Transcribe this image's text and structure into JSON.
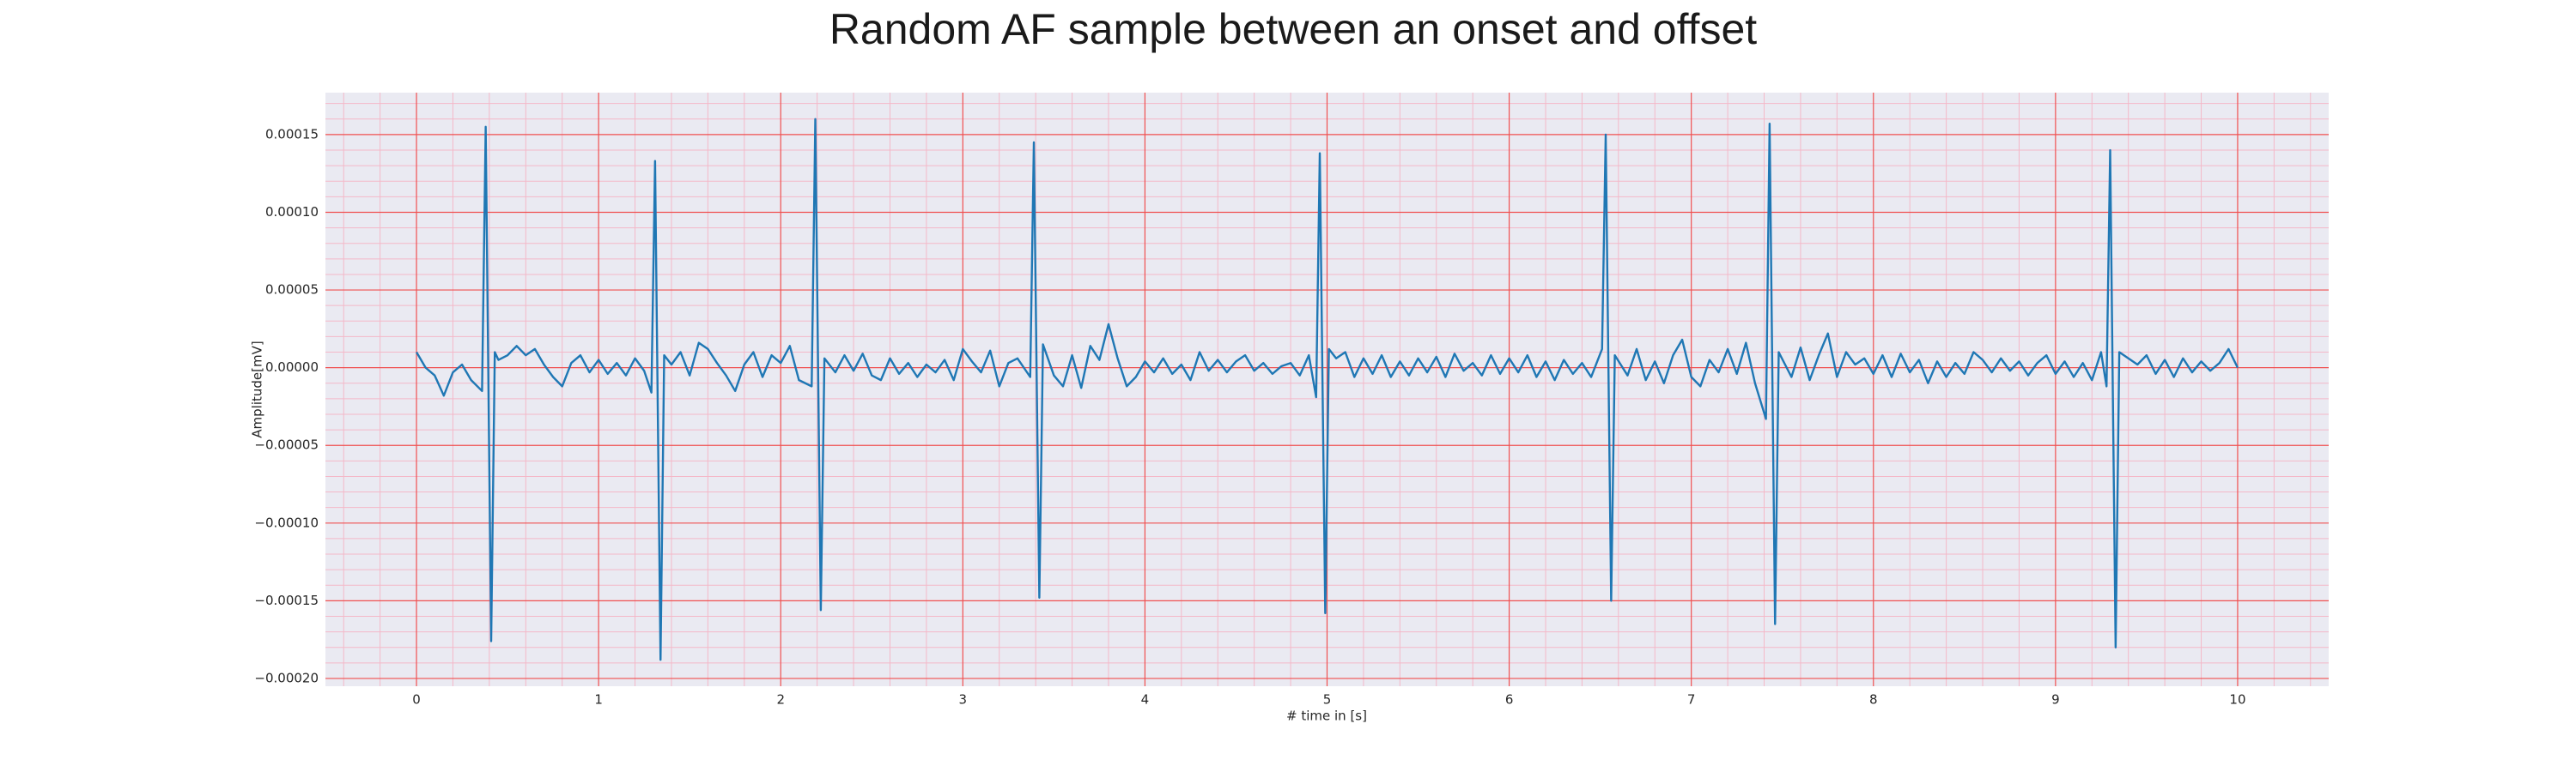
{
  "chart_data": {
    "type": "line",
    "title": "Random AF sample between an onset and offset",
    "xlabel": "# time in [s]",
    "ylabel": "Amplitude[mV]",
    "color": "#1f77b4",
    "grid": true,
    "minor_grid": true,
    "xlim": [
      -0.5,
      10.5
    ],
    "ylim": [
      -0.000205,
      0.000177
    ],
    "xticks": [
      0,
      1,
      2,
      3,
      4,
      5,
      6,
      7,
      8,
      9,
      10
    ],
    "yticks": [
      {
        "value": -0.0002,
        "label": "−0.00020"
      },
      {
        "value": -0.00015,
        "label": "−0.00015"
      },
      {
        "value": -0.0001,
        "label": "−0.00010"
      },
      {
        "value": -5e-05,
        "label": "−0.00005"
      },
      {
        "value": 0,
        "label": "0.00000"
      },
      {
        "value": 5e-05,
        "label": "0.00005"
      },
      {
        "value": 0.0001,
        "label": "0.00010"
      },
      {
        "value": 0.00015,
        "label": "0.00015"
      }
    ],
    "x": [
      0,
      0.05,
      0.1,
      0.15,
      0.2,
      0.25,
      0.3,
      0.36,
      0.38,
      0.41,
      0.43,
      0.45,
      0.5,
      0.55,
      0.6,
      0.65,
      0.7,
      0.75,
      0.8,
      0.85,
      0.9,
      0.95,
      1.0,
      1.05,
      1.1,
      1.15,
      1.2,
      1.25,
      1.29,
      1.31,
      1.34,
      1.36,
      1.4,
      1.45,
      1.5,
      1.55,
      1.6,
      1.65,
      1.7,
      1.75,
      1.8,
      1.85,
      1.9,
      1.95,
      2.0,
      2.05,
      2.1,
      2.17,
      2.19,
      2.22,
      2.24,
      2.3,
      2.35,
      2.4,
      2.45,
      2.5,
      2.55,
      2.6,
      2.65,
      2.7,
      2.75,
      2.8,
      2.85,
      2.9,
      2.95,
      3.0,
      3.05,
      3.1,
      3.15,
      3.2,
      3.25,
      3.3,
      3.37,
      3.39,
      3.42,
      3.44,
      3.5,
      3.55,
      3.6,
      3.65,
      3.7,
      3.75,
      3.8,
      3.85,
      3.9,
      3.95,
      4.0,
      4.05,
      4.1,
      4.15,
      4.2,
      4.25,
      4.3,
      4.35,
      4.4,
      4.45,
      4.5,
      4.55,
      4.6,
      4.65,
      4.7,
      4.75,
      4.8,
      4.85,
      4.9,
      4.94,
      4.96,
      4.99,
      5.01,
      5.05,
      5.1,
      5.15,
      5.2,
      5.25,
      5.3,
      5.35,
      5.4,
      5.45,
      5.5,
      5.55,
      5.6,
      5.65,
      5.7,
      5.75,
      5.8,
      5.85,
      5.9,
      5.95,
      6.0,
      6.05,
      6.1,
      6.15,
      6.2,
      6.25,
      6.3,
      6.35,
      6.4,
      6.45,
      6.51,
      6.53,
      6.56,
      6.58,
      6.65,
      6.7,
      6.75,
      6.8,
      6.85,
      6.9,
      6.95,
      7.0,
      7.05,
      7.1,
      7.15,
      7.2,
      7.25,
      7.3,
      7.35,
      7.41,
      7.43,
      7.46,
      7.48,
      7.55,
      7.6,
      7.65,
      7.7,
      7.75,
      7.8,
      7.85,
      7.9,
      7.95,
      8.0,
      8.05,
      8.1,
      8.15,
      8.2,
      8.25,
      8.3,
      8.35,
      8.4,
      8.45,
      8.5,
      8.55,
      8.6,
      8.65,
      8.7,
      8.75,
      8.8,
      8.85,
      8.9,
      8.95,
      9.0,
      9.05,
      9.1,
      9.15,
      9.2,
      9.25,
      9.28,
      9.3,
      9.33,
      9.35,
      9.4,
      9.45,
      9.5,
      9.55,
      9.6,
      9.65,
      9.7,
      9.75,
      9.8,
      9.85,
      9.9,
      9.95,
      10.0
    ],
    "values": [
      1e-05,
      0,
      -5e-06,
      -1.8e-05,
      -3e-06,
      2e-06,
      -8e-06,
      -1.5e-05,
      0.000155,
      -0.000176,
      1e-05,
      5e-06,
      8e-06,
      1.4e-05,
      8e-06,
      1.2e-05,
      2e-06,
      -6e-06,
      -1.2e-05,
      3e-06,
      8e-06,
      -3e-06,
      5e-06,
      -4e-06,
      3e-06,
      -5e-06,
      6e-06,
      -2e-06,
      -1.6e-05,
      0.000133,
      -0.000188,
      8e-06,
      2e-06,
      1e-05,
      -5e-06,
      1.6e-05,
      1.2e-05,
      3e-06,
      -5e-06,
      -1.5e-05,
      2e-06,
      1e-05,
      -6e-06,
      8e-06,
      3e-06,
      1.4e-05,
      -8e-06,
      -1.2e-05,
      0.00016,
      -0.000156,
      6e-06,
      -3e-06,
      8e-06,
      -2e-06,
      9e-06,
      -5e-06,
      -8e-06,
      6e-06,
      -4e-06,
      3e-06,
      -6e-06,
      2e-06,
      -3e-06,
      5e-06,
      -8e-06,
      1.2e-05,
      4e-06,
      -3e-06,
      1.1e-05,
      -1.2e-05,
      3e-06,
      6e-06,
      -6e-06,
      0.000145,
      -0.000148,
      1.5e-05,
      -5e-06,
      -1.2e-05,
      8e-06,
      -1.3e-05,
      1.4e-05,
      5e-06,
      2.8e-05,
      6e-06,
      -1.2e-05,
      -6e-06,
      4e-06,
      -3e-06,
      6e-06,
      -4e-06,
      2e-06,
      -8e-06,
      1e-05,
      -2e-06,
      5e-06,
      -3e-06,
      4e-06,
      8e-06,
      -2e-06,
      3e-06,
      -4e-06,
      1e-06,
      3e-06,
      -5e-06,
      8e-06,
      -1.9e-05,
      0.000138,
      -0.000158,
      1.2e-05,
      6e-06,
      1e-05,
      -6e-06,
      6e-06,
      -4e-06,
      8e-06,
      -6e-06,
      4e-06,
      -5e-06,
      6e-06,
      -3e-06,
      7e-06,
      -6e-06,
      9e-06,
      -2e-06,
      3e-06,
      -5e-06,
      8e-06,
      -4e-06,
      6e-06,
      -3e-06,
      8e-06,
      -6e-06,
      4e-06,
      -8e-06,
      5e-06,
      -4e-06,
      3e-06,
      -6e-06,
      1.2e-05,
      0.00015,
      -0.00015,
      8e-06,
      -5e-06,
      1.2e-05,
      -8e-06,
      4e-06,
      -1e-05,
      8e-06,
      1.8e-05,
      -6e-06,
      -1.2e-05,
      5e-06,
      -3e-06,
      1.2e-05,
      -4e-06,
      1.6e-05,
      -1e-05,
      -3.3e-05,
      0.000157,
      -0.000165,
      1e-05,
      -6e-06,
      1.3e-05,
      -8e-06,
      8e-06,
      2.2e-05,
      -6e-06,
      1e-05,
      2e-06,
      6e-06,
      -4e-06,
      8e-06,
      -6e-06,
      9e-06,
      -3e-06,
      5e-06,
      -1e-05,
      4e-06,
      -6e-06,
      3e-06,
      -4e-06,
      1e-05,
      5e-06,
      -3e-06,
      6e-06,
      -2e-06,
      4e-06,
      -5e-06,
      3e-06,
      8e-06,
      -4e-06,
      4e-06,
      -6e-06,
      3e-06,
      -8e-06,
      1e-05,
      -1.2e-05,
      0.00014,
      -0.00018,
      1e-05,
      6e-06,
      2e-06,
      8e-06,
      -4e-06,
      5e-06,
      -6e-06,
      6e-06,
      -3e-06,
      4e-06,
      -2e-06,
      3e-06,
      1.2e-05,
      0
    ]
  }
}
